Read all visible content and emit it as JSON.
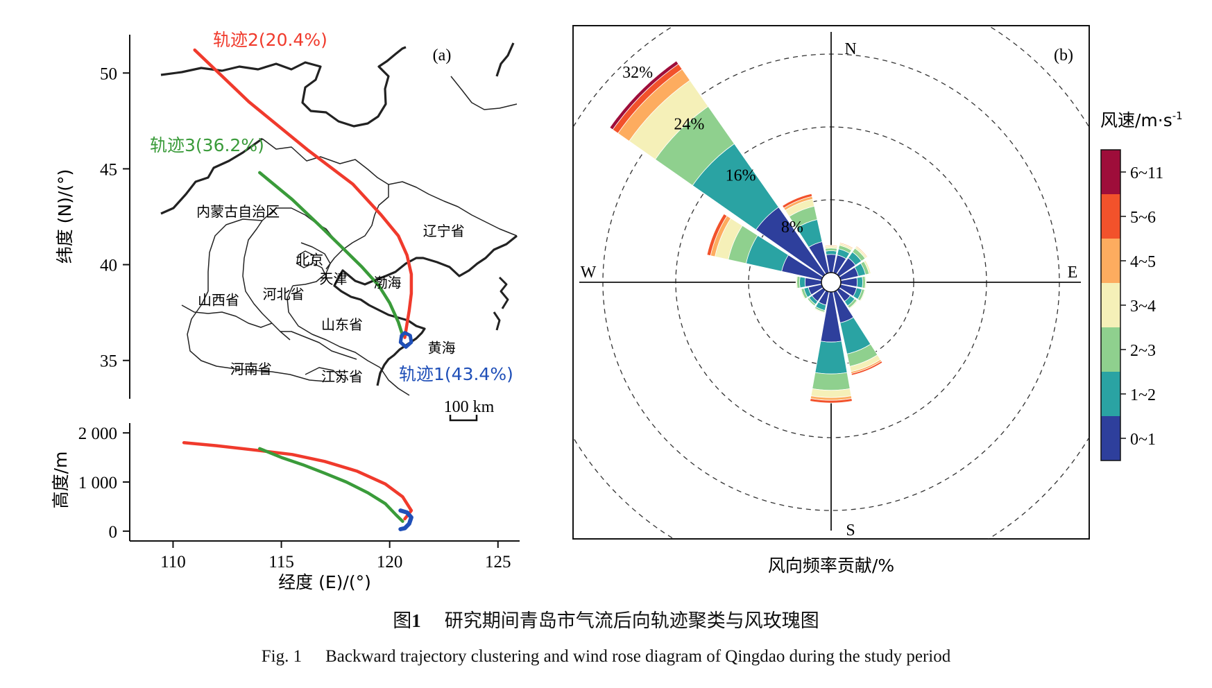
{
  "chart_data": [
    {
      "type": "line",
      "panel": "(a)",
      "xlabel": "经度 (E)/(°)",
      "ylabel_map": "纬度 (N)/(°)",
      "ylabel_height": "高度/m",
      "xticks": [
        110,
        115,
        120,
        125
      ],
      "xlim": [
        108,
        126
      ],
      "yticks_map": [
        35,
        40,
        45,
        50
      ],
      "ylim_map": [
        33,
        52
      ],
      "yticks_height": [
        0,
        1000,
        2000
      ],
      "ytick_labels_height": [
        "0",
        "1 000",
        "2 000"
      ],
      "ylim_height": [
        -200,
        2200
      ],
      "scale_bar": "100 km",
      "region_labels": [
        {
          "text": "内蒙古自治区",
          "lon": 113.0,
          "lat": 42.8
        },
        {
          "text": "辽宁省",
          "lon": 122.5,
          "lat": 41.8
        },
        {
          "text": "北京",
          "lon": 116.3,
          "lat": 40.3
        },
        {
          "text": "天津",
          "lon": 117.4,
          "lat": 39.3
        },
        {
          "text": "渤海",
          "lon": 119.9,
          "lat": 39.1
        },
        {
          "text": "河北省",
          "lon": 115.1,
          "lat": 38.5
        },
        {
          "text": "山西省",
          "lon": 112.1,
          "lat": 38.2
        },
        {
          "text": "山东省",
          "lon": 117.8,
          "lat": 36.9
        },
        {
          "text": "黄海",
          "lon": 122.4,
          "lat": 35.7
        },
        {
          "text": "河南省",
          "lon": 113.6,
          "lat": 34.6
        },
        {
          "text": "江苏省",
          "lon": 117.8,
          "lat": 34.2
        }
      ],
      "series": [
        {
          "name": "轨迹2(20.4%)",
          "color": "#f03a2c",
          "lon": [
            111.0,
            113.5,
            116.2,
            118.3,
            119.6,
            120.4,
            120.8,
            121.0,
            121.0,
            120.9,
            120.8,
            120.7
          ],
          "lat": [
            51.2,
            48.5,
            46.0,
            44.2,
            42.6,
            41.5,
            40.5,
            39.5,
            38.5,
            37.6,
            36.9,
            36.2
          ],
          "height_lon": [
            110.5,
            112.0,
            114.0,
            115.5,
            117.0,
            118.5,
            119.8,
            120.6,
            121.0,
            120.7
          ],
          "height_m": [
            1800,
            1740,
            1640,
            1560,
            1420,
            1220,
            960,
            700,
            420,
            250
          ]
        },
        {
          "name": "轨迹3(36.2%)",
          "color": "#3a9b3a",
          "lon": [
            114.0,
            115.5,
            116.8,
            117.8,
            118.7,
            119.5,
            120.0,
            120.4,
            120.6
          ],
          "lat": [
            44.8,
            43.4,
            42.0,
            40.9,
            39.9,
            38.9,
            38.0,
            37.0,
            36.3
          ],
          "height_lon": [
            114.0,
            115.0,
            116.0,
            117.0,
            118.0,
            119.0,
            119.8,
            120.3,
            120.6
          ],
          "height_m": [
            1680,
            1500,
            1350,
            1180,
            1000,
            780,
            560,
            330,
            200
          ]
        },
        {
          "name": "轨迹1(43.4%)",
          "color": "#1f4fb8",
          "lon": [
            120.7,
            120.95,
            121.0,
            120.75,
            120.5,
            120.55,
            120.7
          ],
          "lat": [
            36.45,
            36.3,
            35.95,
            35.7,
            35.95,
            36.3,
            36.45
          ],
          "height_lon": [
            120.5,
            120.8,
            121.0,
            120.9,
            120.7,
            120.5
          ],
          "height_m": [
            420,
            380,
            280,
            150,
            60,
            40
          ]
        }
      ]
    },
    {
      "type": "windrose",
      "panel": "(b)",
      "xlabel": "风向频率贡献/%",
      "directions": [
        "N",
        "E",
        "S",
        "W"
      ],
      "radial_ticks": [
        8,
        16,
        24,
        32
      ],
      "radial_tick_labels": [
        "8%",
        "16%",
        "24%",
        "32%"
      ],
      "rmax": 32,
      "legend_title": "风速/m·s",
      "legend_title_sup": "-1",
      "speed_bins": [
        "0~1",
        "1~2",
        "2~3",
        "3~4",
        "4~5",
        "5~6",
        "6~11"
      ],
      "speed_colors": [
        "#2e3f9c",
        "#2aa3a3",
        "#8fd08e",
        "#f5f0b8",
        "#fdac5f",
        "#f2522b",
        "#9e0d3a"
      ],
      "sector_width_deg": 22.5,
      "sectors": [
        {
          "dir": 0.0,
          "values": [
            2.0,
            0.4,
            0.3,
            0.2,
            0.1,
            0.0,
            0.0
          ]
        },
        {
          "dir": 22.5,
          "values": [
            2.0,
            0.7,
            0.4,
            0.2,
            0.1,
            0.0,
            0.0
          ]
        },
        {
          "dir": 45.0,
          "values": [
            2.2,
            0.8,
            0.5,
            0.2,
            0.1,
            0.0,
            0.0
          ]
        },
        {
          "dir": 67.5,
          "values": [
            2.0,
            0.8,
            0.4,
            0.2,
            0.0,
            0.0,
            0.0
          ]
        },
        {
          "dir": 90.0,
          "values": [
            1.8,
            0.6,
            0.3,
            0.1,
            0.0,
            0.0,
            0.0
          ]
        },
        {
          "dir": 112.5,
          "values": [
            1.8,
            0.6,
            0.3,
            0.1,
            0.0,
            0.0,
            0.0
          ]
        },
        {
          "dir": 135.0,
          "values": [
            1.5,
            0.6,
            0.3,
            0.1,
            0.0,
            0.0,
            0.0
          ]
        },
        {
          "dir": 157.5,
          "values": [
            3.5,
            3.5,
            1.4,
            0.6,
            0.2,
            0.2,
            0.0
          ]
        },
        {
          "dir": 180.0,
          "values": [
            5.5,
            3.5,
            1.8,
            0.8,
            0.3,
            0.3,
            0.0
          ]
        },
        {
          "dir": 202.5,
          "values": [
            1.5,
            0.6,
            0.2,
            0.1,
            0.0,
            0.0,
            0.0
          ]
        },
        {
          "dir": 225.0,
          "values": [
            1.5,
            0.4,
            0.2,
            0.0,
            0.0,
            0.0,
            0.0
          ]
        },
        {
          "dir": 247.5,
          "values": [
            1.5,
            0.5,
            0.3,
            0.1,
            0.0,
            0.0,
            0.0
          ]
        },
        {
          "dir": 270.0,
          "values": [
            1.8,
            0.6,
            0.3,
            0.1,
            0.0,
            0.0,
            0.0
          ]
        },
        {
          "dir": 292.5,
          "values": [
            4.5,
            4.0,
            2.0,
            1.5,
            0.5,
            0.4,
            0.0
          ]
        },
        {
          "dir": 315.0,
          "values": [
            9.0,
            8.5,
            5.0,
            3.5,
            1.5,
            0.7,
            0.4
          ]
        },
        {
          "dir": 337.5,
          "values": [
            3.5,
            2.5,
            1.5,
            0.8,
            0.3,
            0.3,
            0.0
          ]
        }
      ]
    }
  ],
  "caption": {
    "cn_label": "图",
    "cn_number": "1",
    "cn_text": "研究期间青岛市气流后向轨迹聚类与风玫瑰图",
    "en_label": "Fig. 1",
    "en_text": "Backward trajectory clustering and wind rose diagram of Qingdao during the study period"
  }
}
